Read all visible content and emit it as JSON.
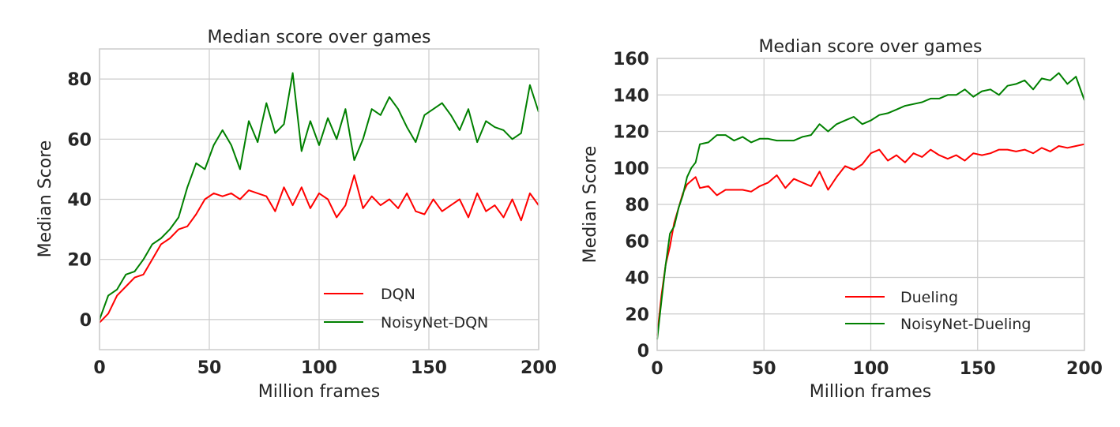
{
  "chart_data": [
    {
      "type": "line",
      "title": "Median score over games",
      "xlabel": "Million frames",
      "ylabel": "Median Score",
      "xlim": [
        0,
        200
      ],
      "ylim": [
        -10,
        90
      ],
      "xticks": [
        0,
        50,
        100,
        150,
        200
      ],
      "yticks": [
        0,
        20,
        40,
        60,
        80
      ],
      "grid": true,
      "legend_position": "lower right",
      "x": [
        0,
        4,
        8,
        12,
        16,
        20,
        24,
        28,
        32,
        36,
        40,
        44,
        48,
        52,
        56,
        60,
        64,
        68,
        72,
        76,
        80,
        84,
        88,
        92,
        96,
        100,
        104,
        108,
        112,
        116,
        120,
        124,
        128,
        132,
        136,
        140,
        144,
        148,
        152,
        156,
        160,
        164,
        168,
        172,
        176,
        180,
        184,
        188,
        192,
        196,
        200
      ],
      "series": [
        {
          "name": "DQN",
          "color": "#ff0000",
          "values": [
            -1,
            2,
            8,
            11,
            14,
            15,
            20,
            25,
            27,
            30,
            31,
            35,
            40,
            42,
            41,
            42,
            40,
            43,
            42,
            41,
            36,
            44,
            38,
            44,
            37,
            42,
            40,
            34,
            38,
            48,
            37,
            41,
            38,
            40,
            37,
            42,
            36,
            35,
            40,
            36,
            38,
            40,
            34,
            42,
            36,
            38,
            34,
            40,
            33,
            42,
            38
          ]
        },
        {
          "name": "NoisyNet-DQN",
          "color": "#008000",
          "values": [
            0,
            8,
            10,
            15,
            16,
            20,
            25,
            27,
            30,
            34,
            44,
            52,
            50,
            58,
            63,
            58,
            50,
            66,
            59,
            72,
            62,
            65,
            82,
            56,
            66,
            58,
            67,
            60,
            70,
            53,
            60,
            70,
            68,
            74,
            70,
            64,
            59,
            68,
            70,
            72,
            68,
            63,
            70,
            59,
            66,
            64,
            63,
            60,
            62,
            78,
            69
          ]
        }
      ]
    },
    {
      "type": "line",
      "title": "Median score over games",
      "xlabel": "Million frames",
      "ylabel": "Median Score",
      "xlim": [
        0,
        200
      ],
      "ylim": [
        0,
        160
      ],
      "xticks": [
        0,
        50,
        100,
        150,
        200
      ],
      "yticks": [
        0,
        20,
        40,
        60,
        80,
        100,
        120,
        140,
        160
      ],
      "grid": true,
      "legend_position": "lower right",
      "x": [
        0,
        2,
        4,
        6,
        8,
        10,
        12,
        14,
        16,
        18,
        20,
        24,
        28,
        32,
        36,
        40,
        44,
        48,
        52,
        56,
        60,
        64,
        68,
        72,
        76,
        80,
        84,
        88,
        92,
        96,
        100,
        104,
        108,
        112,
        116,
        120,
        124,
        128,
        132,
        136,
        140,
        144,
        148,
        152,
        156,
        160,
        164,
        168,
        172,
        176,
        180,
        184,
        188,
        192,
        196,
        200
      ],
      "series": [
        {
          "name": "Dueling",
          "color": "#ff0000",
          "values": [
            8,
            30,
            47,
            57,
            70,
            78,
            86,
            91,
            93,
            95,
            89,
            90,
            85,
            88,
            88,
            88,
            87,
            90,
            92,
            96,
            89,
            94,
            92,
            90,
            98,
            88,
            95,
            101,
            99,
            102,
            108,
            110,
            104,
            107,
            103,
            108,
            106,
            110,
            107,
            105,
            107,
            104,
            108,
            107,
            108,
            110,
            110,
            109,
            110,
            108,
            111,
            109,
            112,
            111,
            112,
            113
          ]
        },
        {
          "name": "NoisyNet-Dueling",
          "color": "#008000",
          "values": [
            6,
            27,
            47,
            64,
            68,
            78,
            85,
            95,
            100,
            103,
            113,
            114,
            118,
            118,
            115,
            117,
            114,
            116,
            116,
            115,
            115,
            115,
            117,
            118,
            124,
            120,
            124,
            126,
            128,
            124,
            126,
            129,
            130,
            132,
            134,
            135,
            136,
            138,
            138,
            140,
            140,
            143,
            139,
            142,
            143,
            140,
            145,
            146,
            148,
            143,
            149,
            148,
            152,
            146,
            150,
            137
          ]
        }
      ]
    }
  ],
  "left": {
    "title": "Median score over games",
    "xlabel": "Million frames",
    "ylabel": "Median Score",
    "legend": [
      "DQN",
      "NoisyNet-DQN"
    ]
  },
  "right": {
    "title": "Median score over games",
    "xlabel": "Million frames",
    "ylabel": "Median Score",
    "legend": [
      "Dueling",
      "NoisyNet-Dueling"
    ]
  }
}
